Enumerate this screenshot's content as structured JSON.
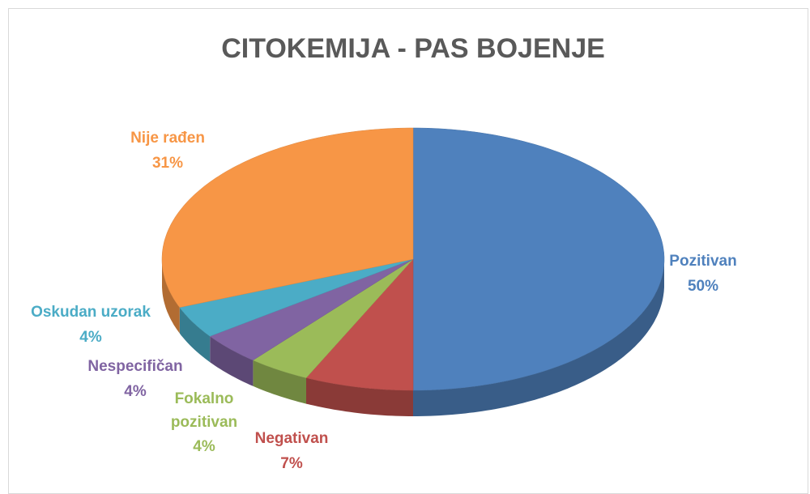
{
  "chart_data": {
    "type": "pie",
    "title": "CITOKEMIJA - PAS BOJENJE",
    "categories": [
      "Pozitivan",
      "Negativan",
      "Fokalno pozitivan",
      "Nespecifičan",
      "Oskudan uzorak",
      "Nije rađen"
    ],
    "values": [
      50,
      7,
      4,
      4,
      4,
      31
    ],
    "value_labels": [
      "50%",
      "7%",
      "4%",
      "4%",
      "4%",
      "31%"
    ],
    "colors": [
      "#4f81bd",
      "#c0504d",
      "#9bbb59",
      "#8064a2",
      "#4bacc6",
      "#f79646"
    ]
  }
}
